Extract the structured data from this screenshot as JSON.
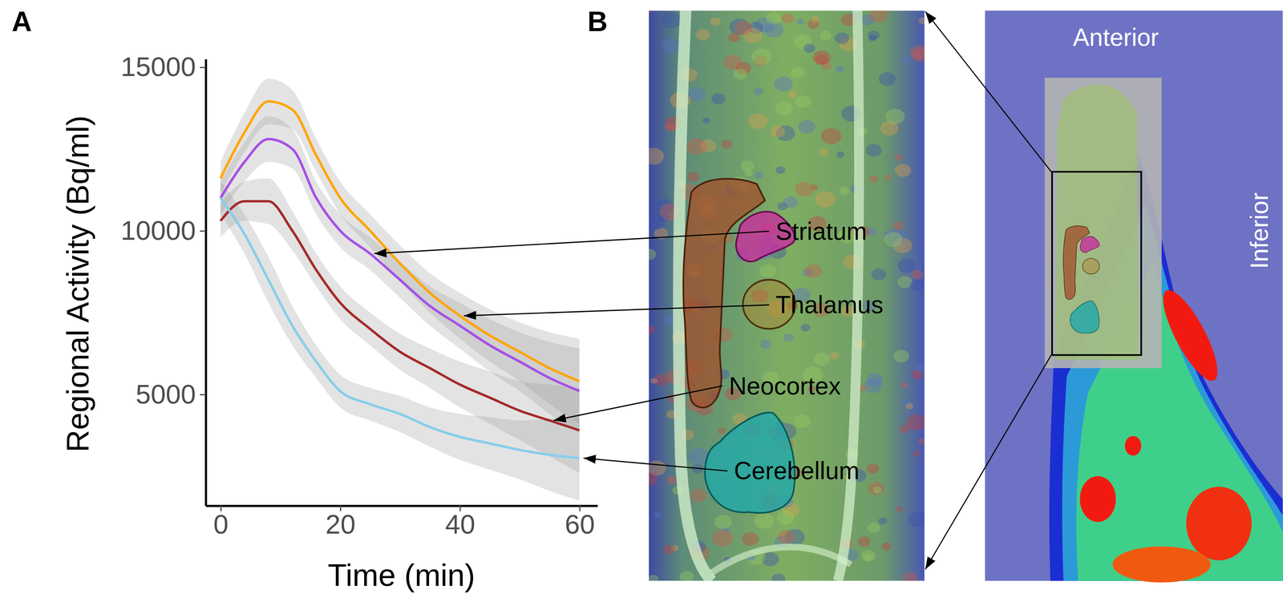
{
  "chart_data": {
    "type": "line",
    "x_label": "Time (min)",
    "y_label": "Regional Activity (Bq/ml)",
    "x": [
      0,
      4,
      8,
      12,
      16,
      20,
      25,
      30,
      35,
      40,
      45,
      50,
      55,
      60
    ],
    "xlim": [
      -2.5,
      63
    ],
    "xticks": [
      0,
      20,
      40,
      60
    ],
    "ylim": [
      1600,
      15250
    ],
    "yticks": [
      5000,
      10000,
      15000
    ],
    "grid": false,
    "series": [
      {
        "name": "Thalamus",
        "color": "#FFA500",
        "values": [
          11600,
          13000,
          13950,
          13700,
          12300,
          11000,
          10000,
          9000,
          8100,
          7400,
          6800,
          6300,
          5800,
          5400
        ],
        "lower": [
          11100,
          12400,
          13250,
          13100,
          11800,
          10500,
          9500,
          8450,
          7500,
          6700,
          6000,
          5400,
          4700,
          4100
        ],
        "upper": [
          12100,
          13600,
          14650,
          14300,
          12800,
          11500,
          10500,
          9550,
          8700,
          8100,
          7600,
          7200,
          6900,
          6700
        ]
      },
      {
        "name": "Striatum",
        "color": "#A54FE8",
        "values": [
          11000,
          12100,
          12800,
          12500,
          11000,
          10000,
          9300,
          8500,
          7700,
          7100,
          6500,
          6000,
          5500,
          5100
        ],
        "lower": [
          10500,
          11500,
          12100,
          11900,
          10500,
          9500,
          8800,
          7950,
          7100,
          6400,
          5700,
          5100,
          4400,
          3800
        ],
        "upper": [
          11500,
          12700,
          13500,
          13100,
          11500,
          10500,
          9800,
          9050,
          8300,
          7800,
          7300,
          6900,
          6600,
          6400
        ]
      },
      {
        "name": "Neocortex",
        "color": "#A52A2A",
        "values": [
          10300,
          10900,
          10900,
          10000,
          8800,
          7800,
          7000,
          6300,
          5800,
          5300,
          4900,
          4500,
          4200,
          3900
        ],
        "lower": [
          9800,
          10300,
          10200,
          9400,
          8300,
          7300,
          6500,
          5750,
          5200,
          4600,
          4100,
          3600,
          3100,
          2600
        ],
        "upper": [
          10800,
          11500,
          11600,
          10600,
          9300,
          8300,
          7500,
          6850,
          6400,
          6000,
          5700,
          5400,
          5300,
          5200
        ]
      },
      {
        "name": "Cerebellum",
        "color": "#87CEEB",
        "values": [
          11000,
          9900,
          8500,
          7100,
          6000,
          5100,
          4700,
          4400,
          4000,
          3700,
          3500,
          3300,
          3150,
          3050
        ],
        "lower": [
          10500,
          9300,
          7800,
          6500,
          5500,
          4600,
          4200,
          3850,
          3400,
          3000,
          2700,
          2400,
          2050,
          1750
        ],
        "upper": [
          11500,
          10500,
          9200,
          7700,
          6500,
          5600,
          5200,
          4950,
          4600,
          4400,
          4300,
          4200,
          4250,
          4350
        ]
      }
    ]
  },
  "panel_labels": [
    "A",
    "B"
  ],
  "image_labels": {
    "anterior": "Anterior",
    "inferior": "Inferior"
  }
}
